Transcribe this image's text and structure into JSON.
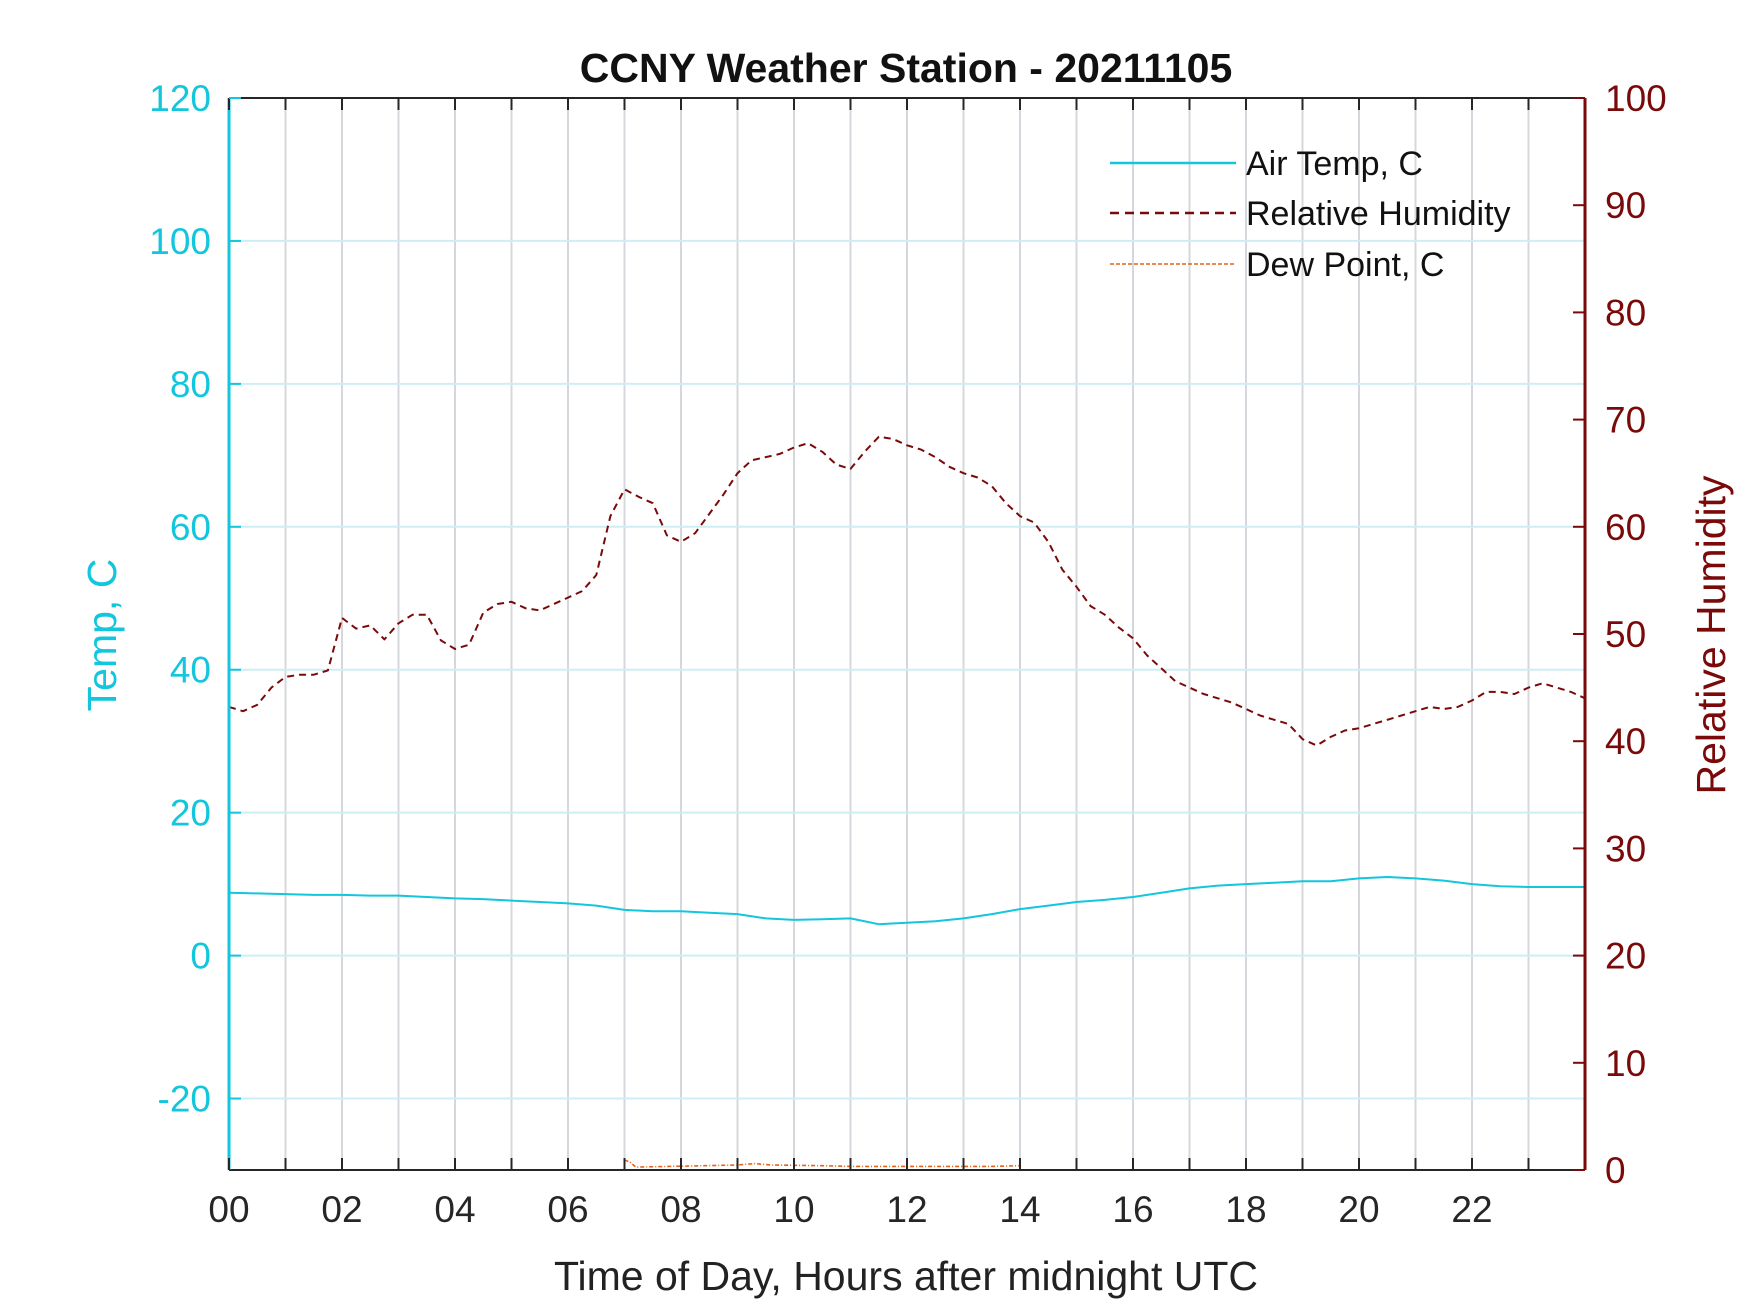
{
  "chart_data": {
    "type": "line",
    "title": "CCNY Weather Station - 20211105",
    "xlabel": "Time of Day, Hours after midnight UTC",
    "ylabel_left": "Temp, C",
    "ylabel_right": "Relative Humidity",
    "xlim": [
      0,
      24
    ],
    "ylim_left": [
      -30,
      120
    ],
    "ylim_right": [
      0,
      100
    ],
    "x_tick_labels": [
      "00",
      "02",
      "04",
      "06",
      "08",
      "10",
      "12",
      "14",
      "16",
      "18",
      "20",
      "22"
    ],
    "left_tick_labels": [
      "-20",
      "0",
      "20",
      "40",
      "60",
      "80",
      "100",
      "120"
    ],
    "right_tick_labels": [
      "0",
      "10",
      "20",
      "30",
      "40",
      "50",
      "60",
      "70",
      "80",
      "90",
      "100"
    ],
    "grid": true,
    "legend_position": "top-right",
    "colors": {
      "air_temp": "#12c6dd",
      "relative_humidity": "#7a0a0a",
      "dew_point": "#e0641c",
      "left_axis": "#12c6dd",
      "right_axis": "#7a0a0a"
    },
    "series": [
      {
        "name": "Air Temp, C",
        "axis": "left",
        "style": "solid",
        "x": [
          0,
          0.5,
          1,
          1.5,
          2,
          2.5,
          3,
          3.5,
          4,
          4.5,
          5,
          5.5,
          6,
          6.5,
          7,
          7.5,
          8,
          8.5,
          9,
          9.5,
          10,
          10.5,
          11,
          11.5,
          12,
          12.5,
          13,
          13.5,
          14,
          14.5,
          15,
          15.5,
          16,
          16.5,
          17,
          17.5,
          18,
          18.5,
          19,
          19.5,
          20,
          20.5,
          21,
          21.5,
          22,
          22.5,
          23,
          23.5,
          24
        ],
        "values": [
          8.8,
          8.7,
          8.6,
          8.5,
          8.5,
          8.4,
          8.4,
          8.2,
          8.0,
          7.9,
          7.7,
          7.5,
          7.3,
          7.0,
          6.4,
          6.2,
          6.2,
          6.0,
          5.8,
          5.2,
          5.0,
          5.1,
          5.2,
          4.4,
          4.6,
          4.8,
          5.2,
          5.8,
          6.5,
          7.0,
          7.5,
          7.8,
          8.2,
          8.8,
          9.4,
          9.8,
          10.0,
          10.2,
          10.4,
          10.4,
          10.8,
          11.0,
          10.8,
          10.5,
          10.0,
          9.7,
          9.6,
          9.6,
          9.6
        ]
      },
      {
        "name": "Relative Humidity",
        "axis": "right",
        "style": "dashed",
        "x": [
          0,
          0.25,
          0.5,
          0.75,
          1,
          1.25,
          1.5,
          1.75,
          2,
          2.25,
          2.5,
          2.75,
          3,
          3.25,
          3.5,
          3.75,
          4,
          4.25,
          4.5,
          4.75,
          5,
          5.25,
          5.5,
          5.75,
          6,
          6.25,
          6.5,
          6.75,
          7,
          7.25,
          7.5,
          7.75,
          8,
          8.25,
          8.5,
          8.75,
          9,
          9.25,
          9.5,
          9.75,
          10,
          10.25,
          10.5,
          10.75,
          11,
          11.25,
          11.5,
          11.75,
          12,
          12.25,
          12.5,
          12.75,
          13,
          13.25,
          13.5,
          13.75,
          14,
          14.25,
          14.5,
          14.75,
          15,
          15.25,
          15.5,
          15.75,
          16,
          16.25,
          16.5,
          16.75,
          17,
          17.25,
          17.5,
          17.75,
          18,
          18.25,
          18.5,
          18.75,
          19,
          19.25,
          19.5,
          19.75,
          20,
          20.25,
          20.5,
          20.75,
          21,
          21.25,
          21.5,
          21.75,
          22,
          22.25,
          22.5,
          22.75,
          23,
          23.25,
          23.5,
          23.75,
          24
        ],
        "values": [
          43.2,
          42.8,
          43.4,
          45.0,
          46.0,
          46.2,
          46.2,
          46.6,
          51.5,
          50.5,
          50.8,
          49.5,
          51.0,
          51.8,
          51.8,
          49.4,
          48.6,
          49.0,
          52.0,
          52.8,
          53.0,
          52.4,
          52.2,
          52.8,
          53.4,
          54.0,
          55.5,
          61.0,
          63.5,
          62.8,
          62.2,
          59.2,
          58.6,
          59.4,
          61.2,
          63.0,
          65.0,
          66.2,
          66.5,
          66.8,
          67.4,
          67.8,
          67.0,
          65.8,
          65.4,
          67.0,
          68.4,
          68.2,
          67.6,
          67.2,
          66.5,
          65.6,
          65.0,
          64.6,
          63.8,
          62.2,
          61.0,
          60.4,
          58.6,
          56.0,
          54.4,
          52.6,
          51.8,
          50.6,
          49.6,
          48.0,
          46.8,
          45.6,
          45.0,
          44.4,
          44.0,
          43.6,
          43.0,
          42.4,
          42.0,
          41.6,
          40.2,
          39.6,
          40.4,
          41.0,
          41.2,
          41.6,
          42.0,
          42.4,
          42.8,
          43.2,
          43.0,
          43.2,
          43.8,
          44.6,
          44.6,
          44.4,
          45.0,
          45.4,
          45.0,
          44.6,
          44.0
        ]
      },
      {
        "name": "Dew Point, C",
        "axis": "left",
        "style": "dash-dot",
        "x": [
          7.0,
          7.1,
          7.2,
          9.0,
          9.3,
          9.6,
          10.5,
          11.0,
          13.5,
          14.0
        ],
        "values": [
          -28.6,
          -28.9,
          -29.6,
          -29.3,
          -29.1,
          -29.3,
          -29.4,
          -29.5,
          -29.5,
          -29.4
        ]
      }
    ]
  }
}
